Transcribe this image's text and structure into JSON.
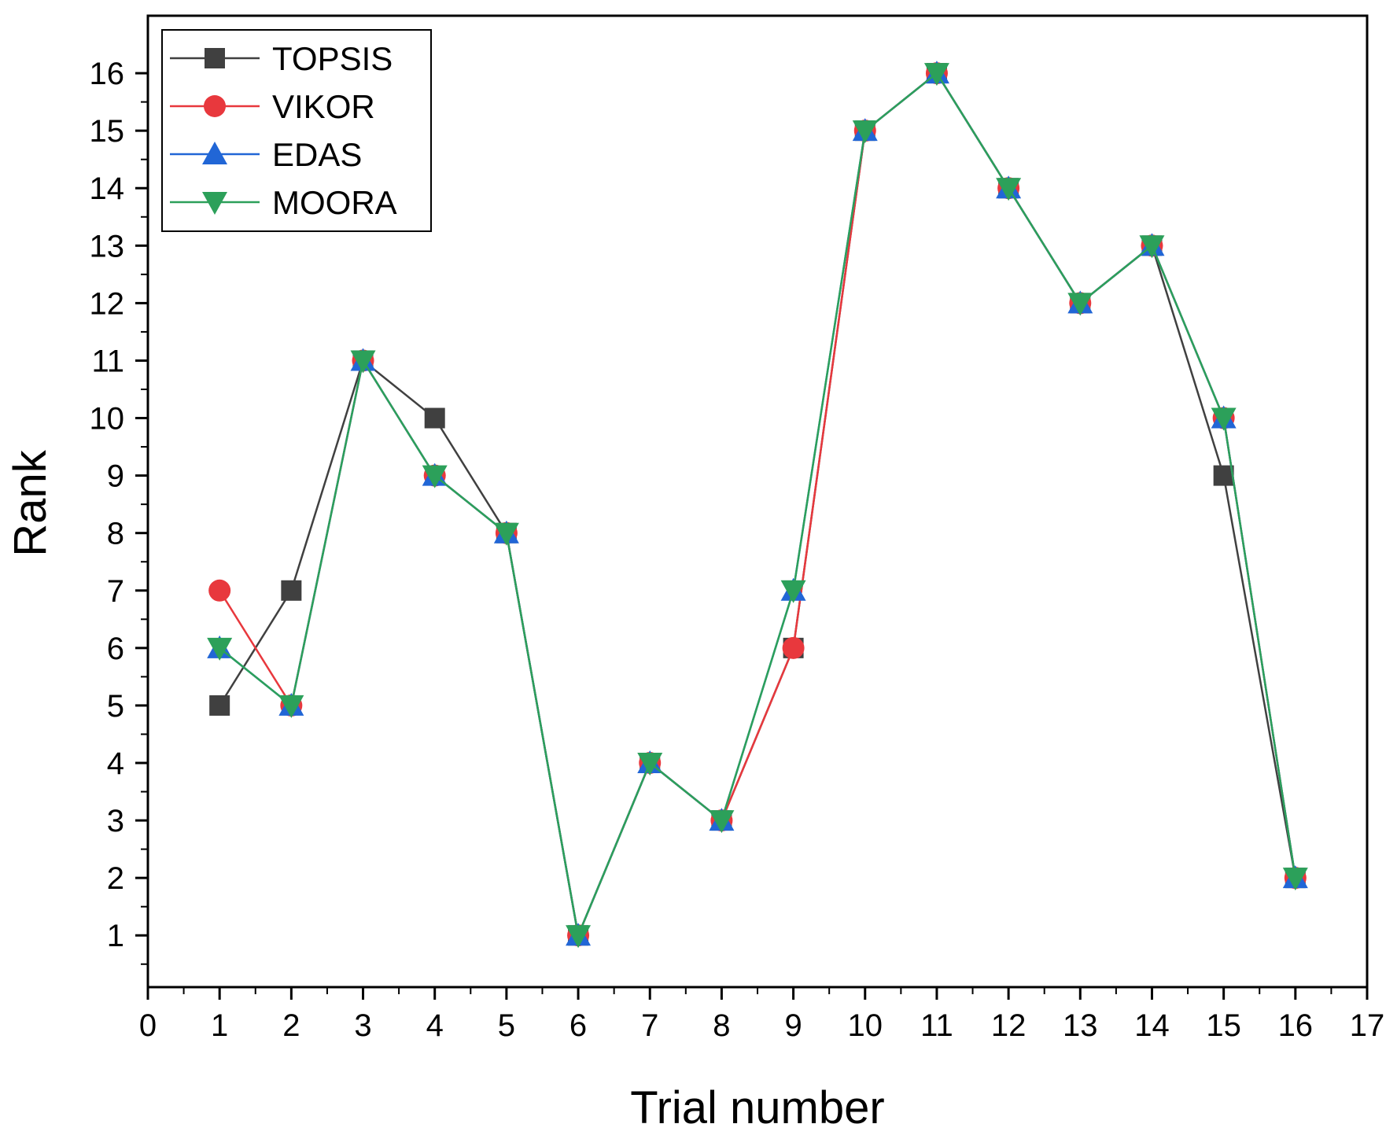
{
  "chart_data": {
    "type": "line",
    "title": "",
    "xlabel": "Trial number",
    "ylabel": "Rank",
    "xlim": [
      0,
      17
    ],
    "ylim": [
      0.1,
      17
    ],
    "x_ticks": [
      "0",
      "1",
      "2",
      "3",
      "4",
      "5",
      "6",
      "7",
      "8",
      "9",
      "10",
      "11",
      "12",
      "13",
      "14",
      "15",
      "16",
      "17"
    ],
    "y_ticks": [
      "1",
      "2",
      "3",
      "4",
      "5",
      "6",
      "7",
      "8",
      "9",
      "10",
      "11",
      "12",
      "13",
      "14",
      "15",
      "16"
    ],
    "grid": false,
    "legend_position": "top-left",
    "x": [
      1,
      2,
      3,
      4,
      5,
      6,
      7,
      8,
      9,
      10,
      11,
      12,
      13,
      14,
      15,
      16
    ],
    "series": [
      {
        "name": "TOPSIS",
        "color": "#404040",
        "marker": "square",
        "values": [
          5,
          7,
          11,
          10,
          8,
          1,
          4,
          3,
          6,
          15,
          16,
          14,
          12,
          13,
          9,
          2
        ]
      },
      {
        "name": "VIKOR",
        "color": "#e8383d",
        "marker": "circle",
        "values": [
          7,
          5,
          11,
          9,
          8,
          1,
          4,
          3,
          6,
          15,
          16,
          14,
          12,
          13,
          10,
          2
        ]
      },
      {
        "name": "EDAS",
        "color": "#2166d6",
        "marker": "triangle-up",
        "values": [
          6,
          5,
          11,
          9,
          8,
          1,
          4,
          3,
          7,
          15,
          16,
          14,
          12,
          13,
          10,
          2
        ]
      },
      {
        "name": "MOORA",
        "color": "#2ca05a",
        "marker": "triangle-down",
        "values": [
          6,
          5,
          11,
          9,
          8,
          1,
          4,
          3,
          7,
          15,
          16,
          14,
          12,
          13,
          10,
          2
        ]
      }
    ]
  }
}
